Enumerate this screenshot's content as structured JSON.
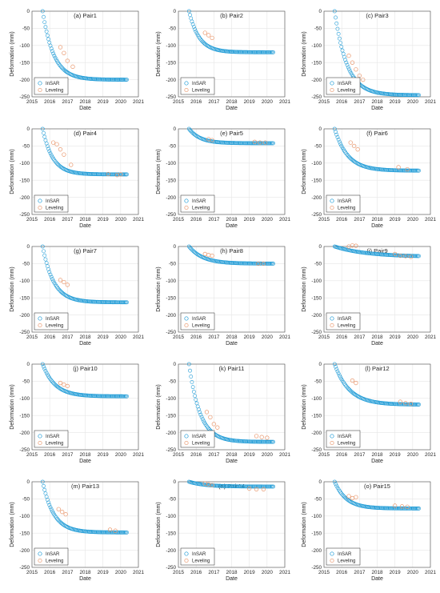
{
  "figure": {
    "series_names": [
      "InSAR",
      "Leveling"
    ],
    "colors": {
      "insar": "#1f9bd6",
      "leveling": "#e8956a",
      "grid": "#e6e6e6",
      "axis": "#4d4d4d"
    }
  },
  "chart_data": [
    {
      "type": "scatter",
      "title": "(a) Pair1",
      "xlabel": "Date",
      "ylabel": "Deformation (mm)",
      "xlim": [
        2015,
        2021
      ],
      "ylim": [
        -250,
        0
      ],
      "xticks": [
        2015,
        2016,
        2017,
        2018,
        2019,
        2020,
        2021
      ],
      "yticks": [
        0,
        -50,
        -100,
        -150,
        -200,
        -250
      ],
      "grid": true,
      "legend": "bottom-left",
      "series": [
        {
          "name": "InSAR",
          "marker": "circle",
          "x_range": [
            2015.6,
            2020.35
          ],
          "y_start": 0,
          "y_end": -200,
          "decay": 1.0
        },
        {
          "name": "Leveling",
          "marker": "circle",
          "x": [
            2016.6,
            2016.8,
            2017.0,
            2017.3
          ],
          "y": [
            -105,
            -122,
            -145,
            -162
          ]
        }
      ]
    },
    {
      "type": "scatter",
      "title": "(b) Pair2",
      "xlabel": "Date",
      "ylabel": "Deformation (mm)",
      "xlim": [
        2015,
        2021
      ],
      "ylim": [
        -250,
        0
      ],
      "xticks": [
        2015,
        2016,
        2017,
        2018,
        2019,
        2020,
        2021
      ],
      "yticks": [
        0,
        -50,
        -100,
        -150,
        -200,
        -250
      ],
      "grid": true,
      "legend": "bottom-left",
      "series": [
        {
          "name": "InSAR",
          "marker": "circle",
          "x_range": [
            2015.6,
            2020.35
          ],
          "y_start": 0,
          "y_end": -120,
          "decay": 1.1
        },
        {
          "name": "Leveling",
          "marker": "circle",
          "x": [
            2016.5,
            2016.7,
            2016.9
          ],
          "y": [
            -63,
            -70,
            -78
          ]
        }
      ]
    },
    {
      "type": "scatter",
      "title": "(c) Pair3",
      "xlabel": "Date",
      "ylabel": "Deformation (mm)",
      "xlim": [
        2015,
        2021
      ],
      "ylim": [
        -250,
        0
      ],
      "xticks": [
        2015,
        2016,
        2017,
        2018,
        2019,
        2020,
        2021
      ],
      "yticks": [
        0,
        -50,
        -100,
        -150,
        -200,
        -250
      ],
      "grid": true,
      "legend": "bottom-left",
      "series": [
        {
          "name": "InSAR",
          "marker": "circle",
          "x_range": [
            2015.6,
            2020.35
          ],
          "y_start": 0,
          "y_end": -245,
          "decay": 0.9
        },
        {
          "name": "Leveling",
          "marker": "circle",
          "x": [
            2016.4,
            2016.6,
            2016.8,
            2017.0,
            2017.2
          ],
          "y": [
            -130,
            -150,
            -170,
            -188,
            -200
          ]
        }
      ]
    },
    {
      "type": "scatter",
      "title": "(d) Pair4",
      "xlabel": "Date",
      "ylabel": "Deformation (mm)",
      "xlim": [
        2015,
        2021
      ],
      "ylim": [
        -250,
        0
      ],
      "xticks": [
        2015,
        2016,
        2017,
        2018,
        2019,
        2020,
        2021
      ],
      "yticks": [
        0,
        -50,
        -100,
        -150,
        -200,
        -250
      ],
      "grid": true,
      "legend": "bottom-left",
      "series": [
        {
          "name": "InSAR",
          "marker": "circle",
          "x_range": [
            2015.6,
            2020.35
          ],
          "y_start": 0,
          "y_end": -133,
          "decay": 1.1
        },
        {
          "name": "Leveling",
          "marker": "circle",
          "x": [
            2016.2,
            2016.4,
            2016.6,
            2016.8,
            2017.2,
            2019.3,
            2019.8,
            2020.0
          ],
          "y": [
            -40,
            -45,
            -60,
            -75,
            -105,
            -132,
            -135,
            -133
          ]
        }
      ]
    },
    {
      "type": "scatter",
      "title": "(e) Pair5",
      "xlabel": "Date",
      "ylabel": "Deformation (mm)",
      "xlim": [
        2015,
        2021
      ],
      "ylim": [
        -250,
        0
      ],
      "xticks": [
        2015,
        2016,
        2017,
        2018,
        2019,
        2020,
        2021
      ],
      "yticks": [
        0,
        -50,
        -100,
        -150,
        -200,
        -250
      ],
      "grid": true,
      "legend": "bottom-left",
      "series": [
        {
          "name": "InSAR",
          "marker": "circle",
          "x_range": [
            2015.6,
            2020.35
          ],
          "y_start": 0,
          "y_end": -42,
          "decay": 1.0
        },
        {
          "name": "Leveling",
          "marker": "circle",
          "x": [
            2016.7,
            2016.9,
            2019.3,
            2019.6,
            2019.9
          ],
          "y": [
            -30,
            -33,
            -38,
            -40,
            -40
          ]
        }
      ]
    },
    {
      "type": "scatter",
      "title": "(f) Pair6",
      "xlabel": "Date",
      "ylabel": "Deformation (mm)",
      "xlim": [
        2015,
        2021
      ],
      "ylim": [
        -250,
        0
      ],
      "xticks": [
        2015,
        2016,
        2017,
        2018,
        2019,
        2020,
        2021
      ],
      "yticks": [
        0,
        -50,
        -100,
        -150,
        -200,
        -250
      ],
      "grid": true,
      "legend": "bottom-left",
      "series": [
        {
          "name": "InSAR",
          "marker": "circle",
          "x_range": [
            2015.6,
            2020.35
          ],
          "y_start": 0,
          "y_end": -122,
          "decay": 0.85
        },
        {
          "name": "Leveling",
          "marker": "circle",
          "x": [
            2016.5,
            2016.7,
            2016.9,
            2019.2,
            2019.7
          ],
          "y": [
            -40,
            -50,
            -60,
            -112,
            -118
          ]
        }
      ]
    },
    {
      "type": "scatter",
      "title": "(g) Pair7",
      "xlabel": "Date",
      "ylabel": "Deformation (mm)",
      "xlim": [
        2015,
        2021
      ],
      "ylim": [
        -250,
        0
      ],
      "xticks": [
        2015,
        2016,
        2017,
        2018,
        2019,
        2020,
        2021
      ],
      "yticks": [
        0,
        -50,
        -100,
        -150,
        -200,
        -250
      ],
      "grid": true,
      "legend": "bottom-left",
      "series": [
        {
          "name": "InSAR",
          "marker": "circle",
          "x_range": [
            2015.6,
            2020.35
          ],
          "y_start": 0,
          "y_end": -163,
          "decay": 1.0
        },
        {
          "name": "Leveling",
          "marker": "circle",
          "x": [
            2016.6,
            2016.8,
            2017.0
          ],
          "y": [
            -98,
            -104,
            -112
          ]
        }
      ]
    },
    {
      "type": "scatter",
      "title": "(h) Pair8",
      "xlabel": "Date",
      "ylabel": "Deformation (mm)",
      "xlim": [
        2015,
        2021
      ],
      "ylim": [
        -250,
        0
      ],
      "xticks": [
        2015,
        2016,
        2017,
        2018,
        2019,
        2020,
        2021
      ],
      "yticks": [
        0,
        -50,
        -100,
        -150,
        -200,
        -250
      ],
      "grid": true,
      "legend": "bottom-left",
      "series": [
        {
          "name": "InSAR",
          "marker": "circle",
          "x_range": [
            2015.6,
            2020.35
          ],
          "y_start": 0,
          "y_end": -50,
          "decay": 0.8
        },
        {
          "name": "Leveling",
          "marker": "circle",
          "x": [
            2016.5,
            2016.7,
            2016.9,
            2019.5,
            2019.8
          ],
          "y": [
            -22,
            -25,
            -27,
            -50,
            -50
          ]
        }
      ]
    },
    {
      "type": "scatter",
      "title": "(i) Pair9",
      "xlabel": "Date",
      "ylabel": "Deformation (mm)",
      "xlim": [
        2015,
        2021
      ],
      "ylim": [
        -250,
        0
      ],
      "xticks": [
        2015,
        2016,
        2017,
        2018,
        2019,
        2020,
        2021
      ],
      "yticks": [
        0,
        -50,
        -100,
        -150,
        -200,
        -250
      ],
      "grid": true,
      "legend": "bottom-left",
      "series": [
        {
          "name": "InSAR",
          "marker": "circle",
          "x_range": [
            2015.6,
            2020.35
          ],
          "y_start": 0,
          "y_end": -28,
          "decay": 0.35
        },
        {
          "name": "Leveling",
          "marker": "circle",
          "x": [
            2016.4,
            2016.6,
            2016.8,
            2019.0,
            2019.3,
            2019.6,
            2019.9
          ],
          "y": [
            0,
            3,
            2,
            -22,
            -27,
            -28,
            -30
          ]
        }
      ]
    },
    {
      "type": "scatter",
      "title": "(j) Pair10",
      "xlabel": "Date",
      "ylabel": "Deformation (mm)",
      "xlim": [
        2015,
        2021
      ],
      "ylim": [
        -250,
        0
      ],
      "xticks": [
        2015,
        2016,
        2017,
        2018,
        2019,
        2020,
        2021
      ],
      "yticks": [
        0,
        -50,
        -100,
        -150,
        -200,
        -250
      ],
      "grid": true,
      "legend": "bottom-left",
      "series": [
        {
          "name": "InSAR",
          "marker": "circle",
          "x_range": [
            2015.6,
            2020.35
          ],
          "y_start": 0,
          "y_end": -94,
          "decay": 0.9
        },
        {
          "name": "Leveling",
          "marker": "circle",
          "x": [
            2016.6,
            2016.8,
            2017.0
          ],
          "y": [
            -55,
            -60,
            -64
          ]
        }
      ]
    },
    {
      "type": "scatter",
      "title": "(k) Pair11",
      "xlabel": "Date",
      "ylabel": "Deformation (mm)",
      "xlim": [
        2015,
        2021
      ],
      "ylim": [
        -250,
        0
      ],
      "xticks": [
        2015,
        2016,
        2017,
        2018,
        2019,
        2020,
        2021
      ],
      "yticks": [
        0,
        -50,
        -100,
        -150,
        -200,
        -250
      ],
      "grid": true,
      "legend": "bottom-left",
      "series": [
        {
          "name": "InSAR",
          "marker": "circle",
          "x_range": [
            2015.6,
            2020.35
          ],
          "y_start": 0,
          "y_end": -227,
          "decay": 1.0
        },
        {
          "name": "Leveling",
          "marker": "circle",
          "x": [
            2016.6,
            2016.8,
            2017.0,
            2017.2,
            2019.4,
            2019.7,
            2020.0
          ],
          "y": [
            -140,
            -155,
            -175,
            -185,
            -210,
            -213,
            -215
          ]
        }
      ]
    },
    {
      "type": "scatter",
      "title": "(l) Pair12",
      "xlabel": "Date",
      "ylabel": "Deformation (mm)",
      "xlim": [
        2015,
        2021
      ],
      "ylim": [
        -250,
        0
      ],
      "xticks": [
        2015,
        2016,
        2017,
        2018,
        2019,
        2020,
        2021
      ],
      "yticks": [
        0,
        -50,
        -100,
        -150,
        -200,
        -250
      ],
      "grid": true,
      "legend": "bottom-left",
      "series": [
        {
          "name": "InSAR",
          "marker": "circle",
          "x_range": [
            2015.6,
            2020.35
          ],
          "y_start": 0,
          "y_end": -118,
          "decay": 0.75
        },
        {
          "name": "Leveling",
          "marker": "circle",
          "x": [
            2016.6,
            2016.8,
            2019.3,
            2019.6,
            2019.9
          ],
          "y": [
            -48,
            -55,
            -110,
            -114,
            -116
          ]
        }
      ]
    },
    {
      "type": "scatter",
      "title": "(m) Pair13",
      "xlabel": "Date",
      "ylabel": "Deformation (mm)",
      "xlim": [
        2015,
        2021
      ],
      "ylim": [
        -250,
        0
      ],
      "xticks": [
        2015,
        2016,
        2017,
        2018,
        2019,
        2020,
        2021
      ],
      "yticks": [
        0,
        -50,
        -100,
        -150,
        -200,
        -250
      ],
      "grid": true,
      "legend": "bottom-left",
      "series": [
        {
          "name": "InSAR",
          "marker": "circle",
          "x_range": [
            2015.6,
            2020.35
          ],
          "y_start": 0,
          "y_end": -148,
          "decay": 1.0
        },
        {
          "name": "Leveling",
          "marker": "circle",
          "x": [
            2016.5,
            2016.7,
            2016.9,
            2019.4,
            2019.7
          ],
          "y": [
            -80,
            -88,
            -95,
            -140,
            -143
          ]
        }
      ]
    },
    {
      "type": "scatter",
      "title": "(n) Pair14",
      "xlabel": "Date",
      "ylabel": "Deformation (mm)",
      "xlim": [
        2015,
        2021
      ],
      "ylim": [
        -250,
        0
      ],
      "xticks": [
        2015,
        2016,
        2017,
        2018,
        2019,
        2020,
        2021
      ],
      "yticks": [
        0,
        -50,
        -100,
        -150,
        -200,
        -250
      ],
      "grid": true,
      "legend": "bottom-left",
      "series": [
        {
          "name": "InSAR",
          "marker": "circle",
          "x_range": [
            2015.6,
            2020.35
          ],
          "y_start": 0,
          "y_end": -14,
          "decay": 0.7
        },
        {
          "name": "Leveling",
          "marker": "circle",
          "x": [
            2016.5,
            2016.7,
            2016.9,
            2019.0,
            2019.4,
            2019.8
          ],
          "y": [
            -5,
            -8,
            -10,
            -20,
            -22,
            -22
          ]
        }
      ]
    },
    {
      "type": "scatter",
      "title": "(o) Pair15",
      "xlabel": "Date",
      "ylabel": "Deformation (mm)",
      "xlim": [
        2015,
        2021
      ],
      "ylim": [
        -250,
        0
      ],
      "xticks": [
        2015,
        2016,
        2017,
        2018,
        2019,
        2020,
        2021
      ],
      "yticks": [
        0,
        -50,
        -100,
        -150,
        -200,
        -250
      ],
      "grid": true,
      "legend": "bottom-left",
      "series": [
        {
          "name": "InSAR",
          "marker": "circle",
          "x_range": [
            2015.6,
            2020.35
          ],
          "y_start": 0,
          "y_end": -78,
          "decay": 0.95
        },
        {
          "name": "Leveling",
          "marker": "circle",
          "x": [
            2016.4,
            2016.6,
            2016.8,
            2019.0,
            2019.4,
            2019.7
          ],
          "y": [
            -42,
            -48,
            -45,
            -70,
            -72,
            -73
          ]
        }
      ]
    }
  ]
}
